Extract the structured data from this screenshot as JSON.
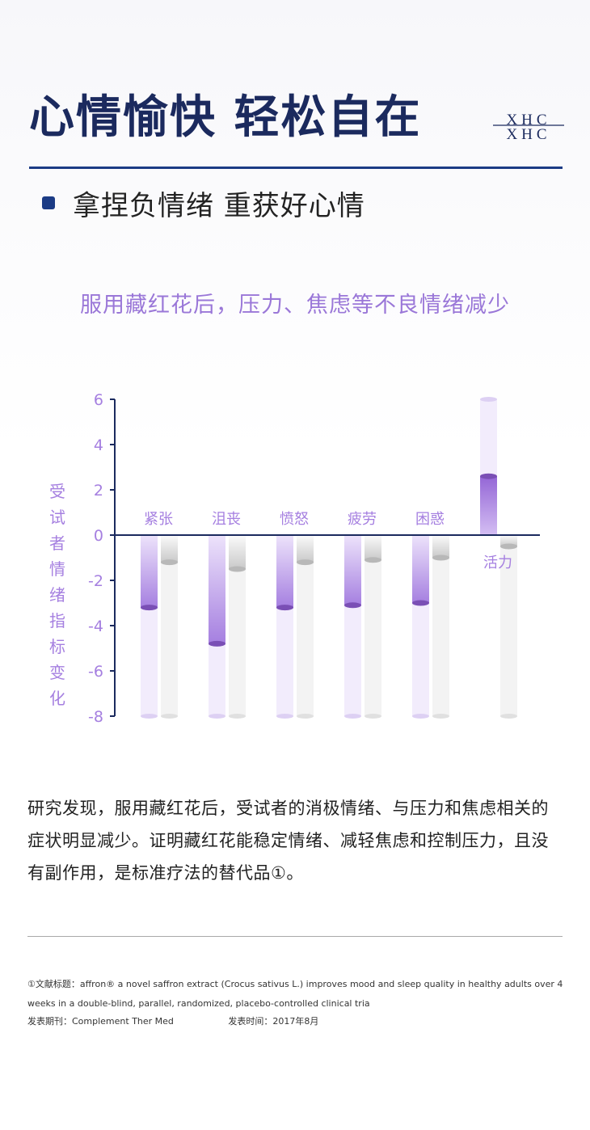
{
  "header": {
    "title": "心情愉快 轻松自在",
    "logo_text": "XHC"
  },
  "section": {
    "heading": "拿捏负情绪 重获好心情"
  },
  "chart_data": {
    "type": "bar",
    "title": "服用藏红花后，压力、焦虑等不良情绪减少",
    "ylabel": "受试者情绪指标变化",
    "ylim": [
      -8,
      6
    ],
    "yticks": [
      "6",
      "4",
      "2",
      "0",
      "-2",
      "-4",
      "-6",
      "-8"
    ],
    "categories": [
      "紧张",
      "沮丧",
      "愤怒",
      "疲劳",
      "困惑",
      "活力"
    ],
    "series": [
      {
        "values": [
          -3.2,
          -4.8,
          -3.2,
          -3.1,
          -3.0,
          2.6
        ]
      },
      {
        "values": [
          -1.2,
          -1.5,
          -1.2,
          -1.1,
          -1.0,
          -0.5
        ]
      }
    ],
    "colors": {
      "primary": "#a57fe0",
      "primary_dark": "#7a4fb5",
      "secondary": "#c8c8c8",
      "axis": "#1b2a5e"
    }
  },
  "body": {
    "text": "研究发现，服用藏红花后，受试者的消极情绪、与压力和焦虑相关的症状明显减少。证明藏红花能稳定情绪、减轻焦虑和控制压力，且没有副作用，是标准疗法的替代品①。"
  },
  "reference": {
    "text": "①文献标题：affron® a novel saffron extract (Crocus sativus L.) improves mood and sleep quality in healthy adults over 4 weeks in a double-blind, parallel, randomized, placebo-controlled clinical tria",
    "journal": "发表期刊：Complement Ther Med",
    "date": "发表时间：2017年8月"
  }
}
